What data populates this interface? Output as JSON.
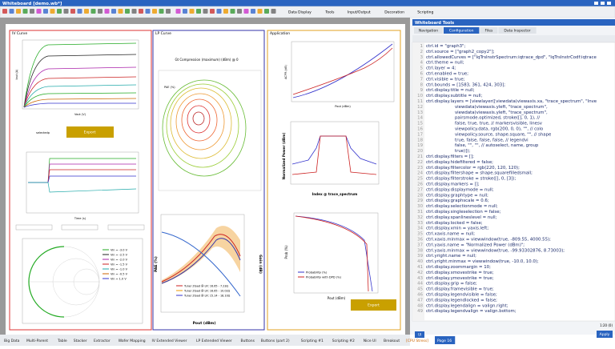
{
  "window": {
    "title": "Whiteboard [demo.wb*]"
  },
  "toolbar": {
    "menus": [
      "Data Display",
      "Tools",
      "Input/Output",
      "Decoration",
      "Scripting"
    ]
  },
  "panels": {
    "iv": {
      "title": "IV Curve",
      "button": "Export",
      "field": "selectedp",
      "x_label": "Vout (V)",
      "y_label": "Iout (A)",
      "time_label": "Time (s)",
      "smith_legend": [
        "Vin = -3.0 V",
        "Vin = -2.5 V",
        "Vin = -2.0 V",
        "Vin = -1.5 V",
        "Vin = -1.0 V",
        "Vin = -0.5 V",
        "Vin = 1.0 V"
      ]
    },
    "lp": {
      "title": "LP Curve",
      "chart_title": "Gt Compression (maximum) (dBm) @ 0",
      "contour_axis": "PAE (%)",
      "x_label": "Pout (dBm)",
      "y_label": "PAE (%)",
      "y2_label": "Gain (dB)",
      "legend": [
        "Tuner Zload @ LR: 16.65 - 7.23Ω",
        "Tuner Zload @ LR: 16.65 - 10.02Ω",
        "Tuner Zload @ LR: 15.14 - 18.10Ω"
      ]
    },
    "app": {
      "title": "Application",
      "x_label": "Pout (dBm)",
      "y_label": "ACPR (dB)",
      "spec_y_label": "Normalized Power (dBm)",
      "spec_x_label": "Index @ trace_spectrum",
      "ccdf_y_label": "Prob (%)",
      "ccdf_x_label": "Pout (dBm)",
      "legend": [
        "Probability (%)",
        "Probability with DPD (%)"
      ],
      "button": "Export"
    }
  },
  "tools": {
    "title": "Whiteboard Tools",
    "tabs": [
      "Navigation",
      "Configuration",
      "Files",
      "Data Inspector"
    ],
    "active_tab": "Configuration",
    "line_numbers": [
      1,
      2,
      3,
      4,
      5,
      6,
      7,
      8,
      9,
      10,
      11,
      12,
      13,
      14,
      15,
      16,
      17,
      18,
      19,
      20,
      21,
      22,
      23,
      24,
      25,
      26,
      27,
      28,
      29,
      30,
      31,
      32,
      33,
      34,
      35,
      36,
      37,
      38,
      39,
      40,
      41,
      42,
      43,
      44,
      45,
      46,
      47,
      48,
      49
    ],
    "code": [
      "ctrl.id = \"graph3\";",
      "ctrl.source = [\"graph2_copy2\"];",
      "ctrl.allowedCurves = [\"IqTrsInstrSpectrum:iqtrace_dpd\", \"IqTrsInstrCodf:iqtrace",
      "ctrl.theme = null;",
      "ctrl.layer = 4;",
      "ctrl.enabled = true;",
      "ctrl.visible = true;",
      "ctrl.bounds = [1583, 361, 424, 303];",
      "ctrl.display.title = null;",
      "ctrl.display.subtitle = null;",
      "ctrl.display.layers = [viewlayer([viewdata(viewaxis.xa, \"trace_spectrum\", \"Inve",
      "                     viewdata(viewaxis.yleft, \"trace_spectrum\",",
      "                     viewdata(viewaxis.yleft, \"trace_spectrum\",",
      "                     pairsmode.optimized, stroke([], 0, 1), //",
      "                     false, true, true, // markersvisible, linesv",
      "                     viewpolicy.data, rgb(200, 0, 0), \"\", // colo",
      "                     viewpolicy.source, shape.square, \"\", // shape",
      "                     true, false, false, false, // legendvi",
      "                     false, \"\", \"\", // autoselect, name, group",
      "                     true)]);",
      "ctrl.display.filters = [];",
      "ctrl.display.hidefiltered = false;",
      "ctrl.display.filtercolor = rgb(220, 120, 120);",
      "ctrl.display.filtershape = shape.squarefilledsmall;",
      "ctrl.display.filterstroke = stroke([], 0, [3]);",
      "ctrl.display.markers = [];",
      "ctrl.display.displaymode = null;",
      "ctrl.display.graphtype = null;",
      "ctrl.display.graphscale = 0.6;",
      "ctrl.display.selectionmode = null;",
      "ctrl.display.singleselection = false;",
      "ctrl.display.spanlineslevel = null;",
      "ctrl.display.locked = false;",
      "ctrl.display.xmin = yaxis.left;",
      "ctrl.xaxis.name = null;",
      "ctrl.xaxis.minmax = viewwindow(true, -809.55, 4000.55);",
      "ctrl.yaxis.name = \"Normalized Power (dBm)\";",
      "ctrl.yaxis.minmax = viewwindow(true, -99.93302876, 8.73003);",
      "ctrl.yright.name = null;",
      "ctrl.yright.minmax = viewwindow(true, -10.0, 10.0);",
      "ctrl.display.zoommargin = 10;",
      "ctrl.display.xmovestrike = true;",
      "ctrl.display.ymovestrike = true;",
      "ctrl.display.grip = false;",
      "ctrl.display.framevisible = true;",
      "ctrl.display.legendvisible = false;",
      "ctrl.display.legendlocked = false;",
      "ctrl.display.legendalign = valign.right;",
      "ctrl.display.legendvalign = valign.bottom;"
    ],
    "status": "1:20 (0)",
    "apply": "Apply",
    "ui": "UI"
  },
  "bottom_tabs": [
    "Big Data",
    "Multi-Parent",
    "Table",
    "Stacker",
    "Extractor",
    "Wafer Mapping",
    "IV Extended Viewer",
    "LP Extended Viewer",
    "Buttons",
    "Buttons (part 2)",
    "Scripting #1",
    "Scripting #2",
    "Nice UI",
    "Breakout",
    "[CPU Stress]",
    "Page 16"
  ],
  "active_bottom_tab": "Page 16"
}
